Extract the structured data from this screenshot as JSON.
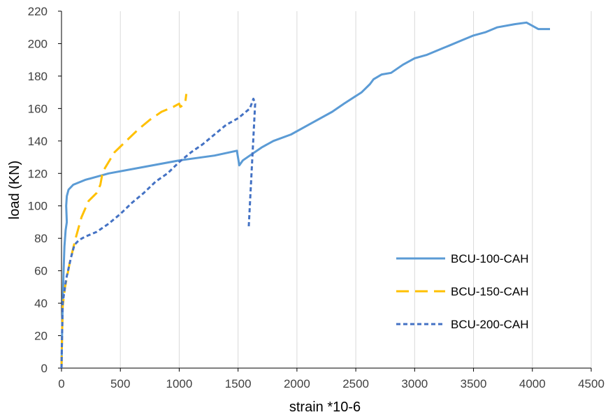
{
  "chart_data": {
    "type": "line",
    "title": "",
    "xlabel": "strain *10-6",
    "ylabel": "load (KN)",
    "xlim": [
      0,
      4500
    ],
    "ylim": [
      0,
      220
    ],
    "xticks": [
      0,
      500,
      1000,
      1500,
      2000,
      2500,
      3000,
      3500,
      4000,
      4500
    ],
    "yticks": [
      0,
      20,
      40,
      60,
      80,
      100,
      120,
      140,
      160,
      180,
      200,
      220
    ],
    "grid": "vertical",
    "legend": "bottom-right",
    "series": [
      {
        "name": "BCU-100-CAH",
        "color": "#5b9bd5",
        "dash": "solid",
        "points": [
          [
            0,
            0
          ],
          [
            5,
            20
          ],
          [
            10,
            40
          ],
          [
            18,
            60
          ],
          [
            25,
            75
          ],
          [
            35,
            85
          ],
          [
            45,
            90
          ],
          [
            40,
            100
          ],
          [
            45,
            106
          ],
          [
            60,
            110
          ],
          [
            100,
            113
          ],
          [
            200,
            116
          ],
          [
            400,
            120
          ],
          [
            700,
            124
          ],
          [
            1000,
            128
          ],
          [
            1300,
            131
          ],
          [
            1490,
            134
          ],
          [
            1510,
            125
          ],
          [
            1540,
            128
          ],
          [
            1600,
            131
          ],
          [
            1700,
            136
          ],
          [
            1800,
            140
          ],
          [
            1950,
            144
          ],
          [
            2100,
            150
          ],
          [
            2300,
            158
          ],
          [
            2400,
            163
          ],
          [
            2550,
            170
          ],
          [
            2620,
            175
          ],
          [
            2650,
            178
          ],
          [
            2720,
            181
          ],
          [
            2800,
            182
          ],
          [
            2900,
            187
          ],
          [
            3000,
            191
          ],
          [
            3100,
            193
          ],
          [
            3200,
            196
          ],
          [
            3300,
            199
          ],
          [
            3400,
            202
          ],
          [
            3500,
            205
          ],
          [
            3600,
            207
          ],
          [
            3700,
            210
          ],
          [
            3850,
            212
          ],
          [
            3950,
            213
          ],
          [
            4000,
            211
          ],
          [
            4050,
            209
          ],
          [
            4150,
            209
          ]
        ]
      },
      {
        "name": "BCU-150-CAH",
        "color": "#ffc000",
        "dash": "long-dash",
        "points": [
          [
            0,
            0
          ],
          [
            5,
            20
          ],
          [
            10,
            38
          ],
          [
            30,
            50
          ],
          [
            70,
            65
          ],
          [
            120,
            80
          ],
          [
            170,
            93
          ],
          [
            230,
            103
          ],
          [
            300,
            108
          ],
          [
            330,
            113
          ],
          [
            350,
            121
          ],
          [
            400,
            127
          ],
          [
            450,
            133
          ],
          [
            550,
            140
          ],
          [
            650,
            147
          ],
          [
            750,
            153
          ],
          [
            850,
            158
          ],
          [
            950,
            161
          ],
          [
            1000,
            163
          ],
          [
            1010,
            161
          ],
          [
            1050,
            163
          ],
          [
            1060,
            169
          ]
        ]
      },
      {
        "name": "BCU-200-CAH",
        "color": "#4472c4",
        "dash": "short-dash",
        "points": [
          [
            0,
            0
          ],
          [
            5,
            20
          ],
          [
            10,
            40
          ],
          [
            40,
            55
          ],
          [
            80,
            68
          ],
          [
            110,
            76
          ],
          [
            150,
            79
          ],
          [
            200,
            81
          ],
          [
            300,
            84
          ],
          [
            400,
            89
          ],
          [
            500,
            95
          ],
          [
            600,
            102
          ],
          [
            700,
            108
          ],
          [
            800,
            115
          ],
          [
            900,
            120
          ],
          [
            1000,
            127
          ],
          [
            1100,
            133
          ],
          [
            1200,
            138
          ],
          [
            1300,
            144
          ],
          [
            1400,
            150
          ],
          [
            1500,
            154
          ],
          [
            1600,
            160
          ],
          [
            1630,
            166
          ],
          [
            1645,
            163
          ],
          [
            1590,
            86
          ]
        ]
      }
    ]
  }
}
